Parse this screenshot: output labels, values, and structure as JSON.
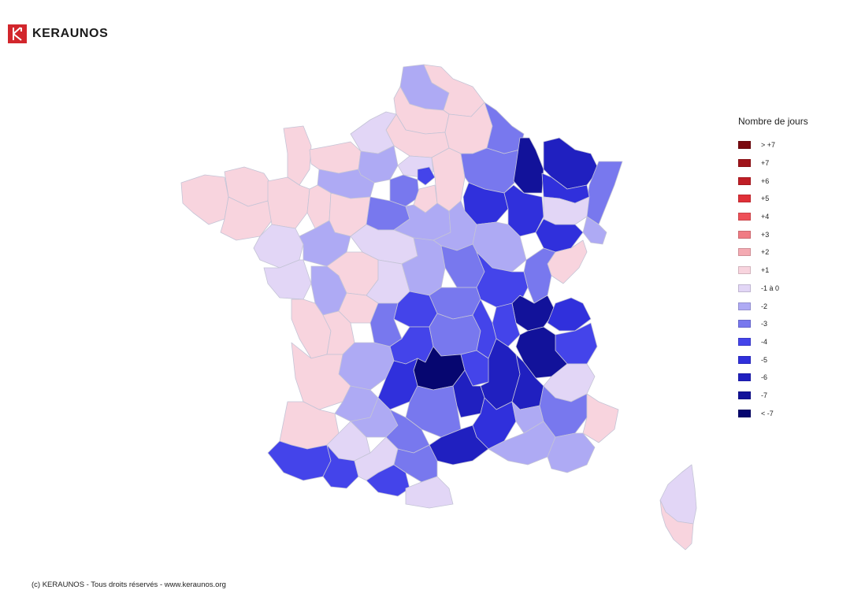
{
  "brand": {
    "name": "KERAUNOS",
    "logo_color": "#d2262c"
  },
  "legend": {
    "title": "Nombre de jours",
    "items": [
      {
        "label": "> +7",
        "color": "#7a0a10"
      },
      {
        "label": "+7",
        "color": "#a0141a"
      },
      {
        "label": "+6",
        "color": "#c01e26"
      },
      {
        "label": "+5",
        "color": "#e03038"
      },
      {
        "label": "+4",
        "color": "#ee5058"
      },
      {
        "label": "+3",
        "color": "#f07c84"
      },
      {
        "label": "+2",
        "color": "#f4aab2"
      },
      {
        "label": "+1",
        "color": "#f8d4de"
      },
      {
        "label": "-1 à 0",
        "color": "#e2d6f6"
      },
      {
        "label": "-2",
        "color": "#aeaaf4"
      },
      {
        "label": "-3",
        "color": "#7878ee"
      },
      {
        "label": "-4",
        "color": "#4444ea"
      },
      {
        "label": "-5",
        "color": "#3030dc"
      },
      {
        "label": "-6",
        "color": "#2020c0"
      },
      {
        "label": "-7",
        "color": "#12129a"
      },
      {
        "label": "< -7",
        "color": "#060670"
      }
    ]
  },
  "footer": {
    "copyright": "(c) KERAUNOS - Tous droits réservés - www.keraunos.org"
  }
}
